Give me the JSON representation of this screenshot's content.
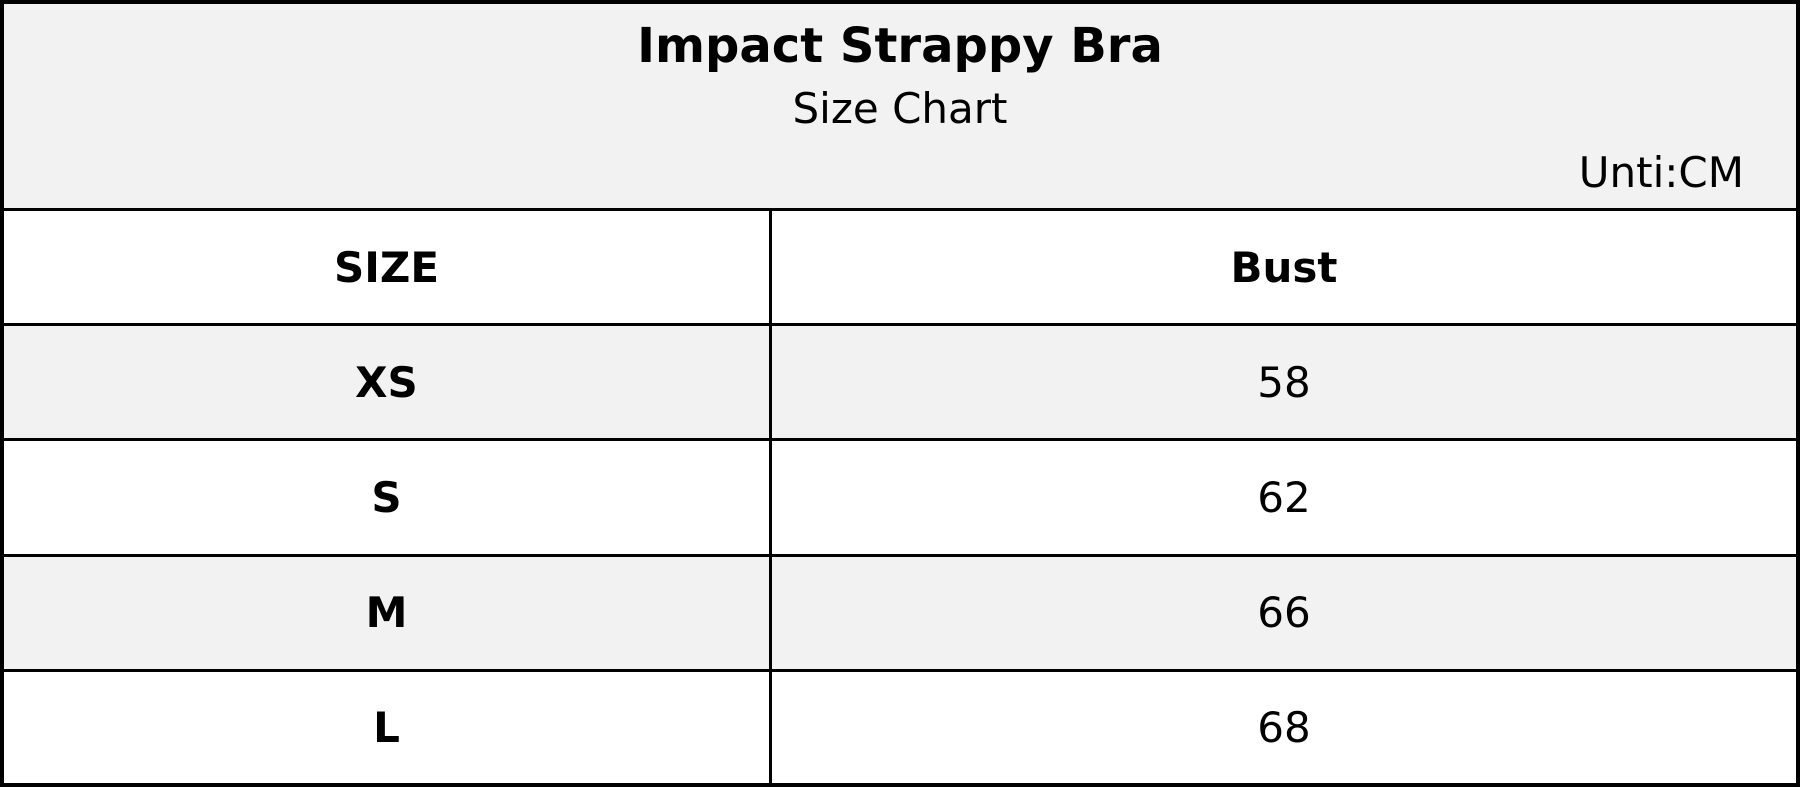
{
  "header": {
    "title": "Impact Strappy Bra",
    "subtitle": "Size Chart",
    "unit": "Unti:CM"
  },
  "table": {
    "columns": [
      "SIZE",
      "Bust"
    ],
    "rows": [
      [
        "XS",
        58
      ],
      [
        "S",
        62
      ],
      [
        "M",
        66
      ],
      [
        "L",
        68
      ]
    ]
  }
}
